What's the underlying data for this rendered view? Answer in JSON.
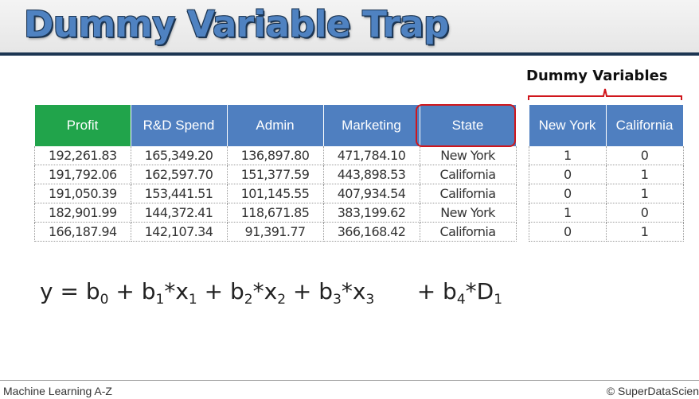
{
  "slide": {
    "title": "Dummy Variable Trap",
    "dummy_label": "Dummy Variables"
  },
  "main_table": {
    "headers": [
      "Profit",
      "R&D Spend",
      "Admin",
      "Marketing",
      "State"
    ],
    "rows": [
      [
        "192,261.83",
        "165,349.20",
        "136,897.80",
        "471,784.10",
        "New York"
      ],
      [
        "191,792.06",
        "162,597.70",
        "151,377.59",
        "443,898.53",
        "California"
      ],
      [
        "191,050.39",
        "153,441.51",
        "101,145.55",
        "407,934.54",
        "California"
      ],
      [
        "182,901.99",
        "144,372.41",
        "118,671.85",
        "383,199.62",
        "New York"
      ],
      [
        "166,187.94",
        "142,107.34",
        "91,391.77",
        "366,168.42",
        "California"
      ]
    ]
  },
  "dummy_table": {
    "headers": [
      "New York",
      "California"
    ],
    "rows": [
      [
        "1",
        "0"
      ],
      [
        "0",
        "1"
      ],
      [
        "0",
        "1"
      ],
      [
        "1",
        "0"
      ],
      [
        "0",
        "1"
      ]
    ]
  },
  "equation": {
    "y": "y",
    "eq": " = b",
    "s0": "0",
    "p1": " + b",
    "s1": "1",
    "x1": "*x",
    "s1b": "1",
    "p2": " + b",
    "s2": "2",
    "x2": "*x",
    "s2b": "2",
    "p3": " + b",
    "s3": "3",
    "x3": "*x",
    "s3b": "3",
    "p4": "      + b",
    "s4": "4",
    "d": "*D",
    "s4b": "1"
  },
  "footer": {
    "left": "Machine Learning A-Z",
    "right": "© SuperDataScien"
  },
  "colors": {
    "title_blue": "#4f82c1",
    "header_blue": "#4f7fc0",
    "profit_green": "#21a44b",
    "highlight_red": "#d0161c",
    "dark_navy": "#1c3552"
  }
}
